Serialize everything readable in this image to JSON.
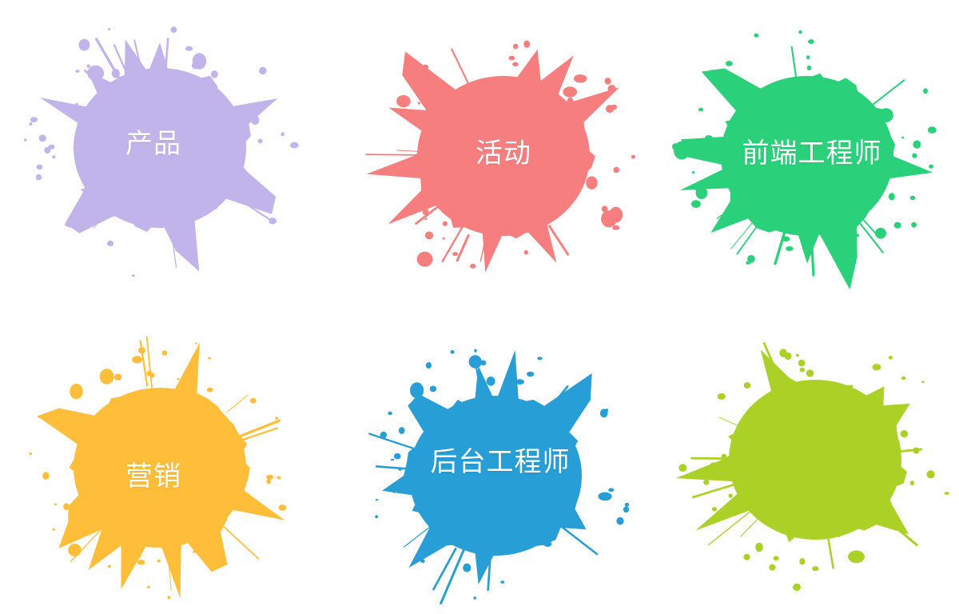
{
  "splatters": [
    {
      "label": "产品",
      "color": "#C0B4EA"
    },
    {
      "label": "活动",
      "color": "#F77E7E"
    },
    {
      "label": "前端工程师",
      "color": "#2AD17A"
    },
    {
      "label": "营销",
      "color": "#FFBE3A"
    },
    {
      "label": "后台工程师",
      "color": "#289ED6"
    },
    {
      "label": "",
      "color": "#ABD126"
    }
  ]
}
